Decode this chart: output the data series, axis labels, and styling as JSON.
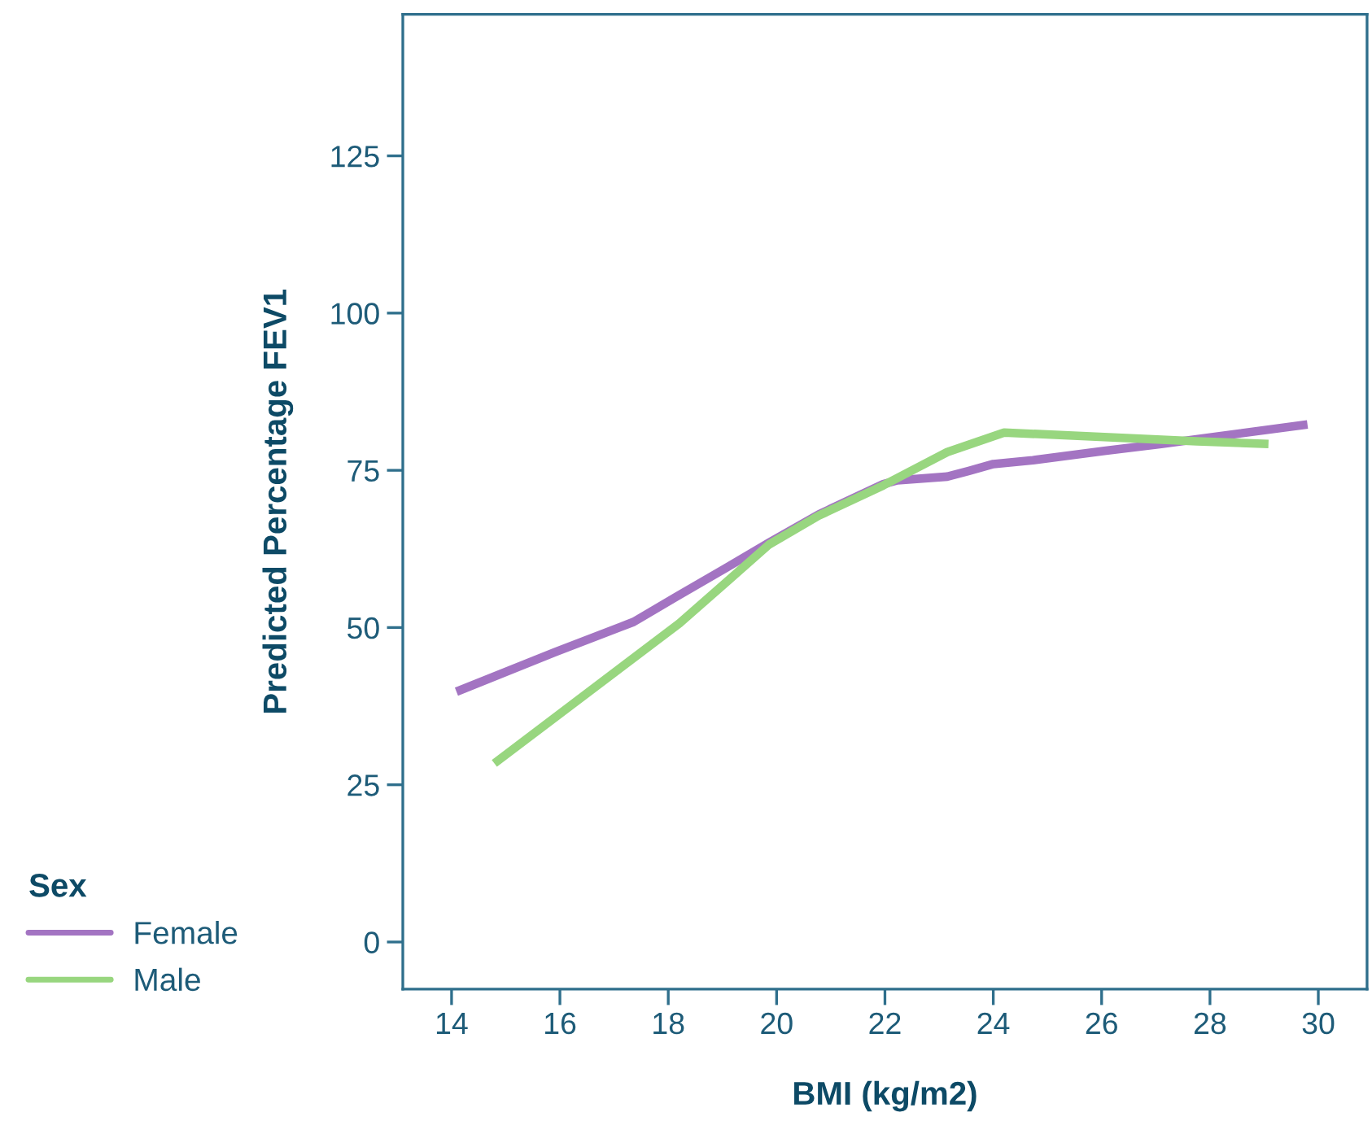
{
  "chart_data": {
    "type": "line",
    "xlabel": "BMI (kg/m2)",
    "ylabel": "Predicted Percentage FEV1",
    "legend_title": "Sex",
    "legend": "bottom left",
    "grid": false,
    "line_style": "solid",
    "xlim": [
      13.1,
      30.9
    ],
    "xticks": [
      14,
      16,
      18,
      20,
      22,
      24,
      26,
      28,
      30
    ],
    "ylim": [
      -7.5,
      147.5
    ],
    "yticks": [
      0,
      25,
      50,
      75,
      100,
      125
    ],
    "series": [
      {
        "name": "Female",
        "color": "#a374c2",
        "x": [
          14.09,
          15.91,
          17.36,
          18.15,
          19.07,
          19.86,
          20.78,
          21.97,
          22.23,
          23.15,
          23.55,
          24.0,
          24.73,
          26.05,
          27.1,
          29.8
        ],
        "values": [
          39.8,
          46.1,
          50.9,
          54.9,
          59.5,
          63.5,
          68.0,
          72.8,
          73.4,
          74.0,
          74.9,
          76.0,
          76.6,
          78.1,
          79.2,
          82.3
        ]
      },
      {
        "name": "Male",
        "color": "#98d67f",
        "x": [
          14.79,
          18.21,
          19.07,
          19.86,
          20.78,
          21.97,
          23.15,
          24.2,
          26.05,
          27.76,
          29.08
        ],
        "values": [
          28.4,
          50.7,
          57.2,
          63.2,
          67.8,
          72.6,
          77.9,
          81.0,
          80.3,
          79.6,
          79.2
        ]
      }
    ]
  }
}
